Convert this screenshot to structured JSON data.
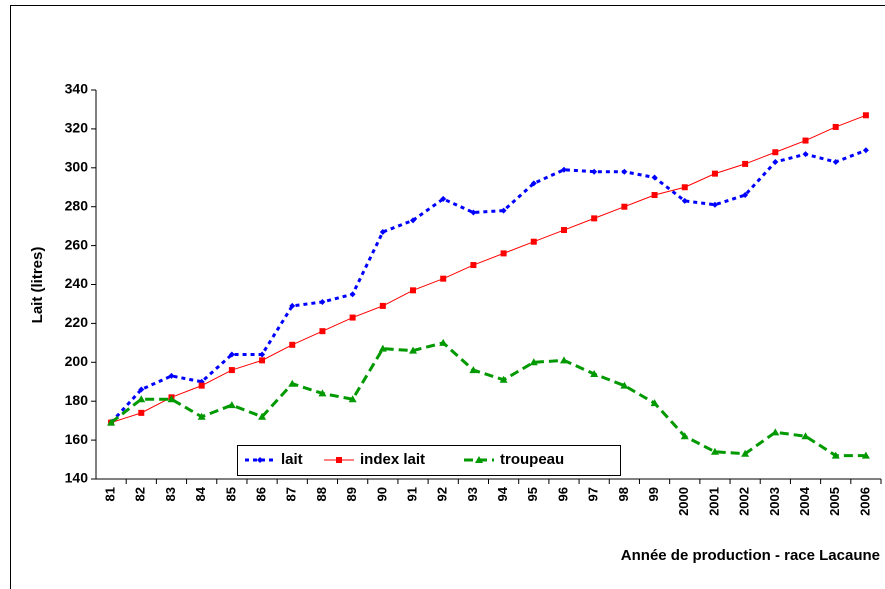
{
  "chart_data": {
    "type": "line",
    "x_label": "Année de production - race Lacaune",
    "y_label": "Lait (litres)",
    "categories": [
      "81",
      "82",
      "83",
      "84",
      "85",
      "86",
      "87",
      "88",
      "89",
      "90",
      "91",
      "92",
      "93",
      "94",
      "95",
      "96",
      "97",
      "98",
      "99",
      "2000",
      "2001",
      "2002",
      "2003",
      "2004",
      "2005",
      "2006"
    ],
    "series": [
      {
        "name": "lait",
        "color": "#0000ff",
        "values": [
          169,
          186,
          193,
          190,
          204,
          204,
          229,
          231,
          235,
          267,
          273,
          284,
          277,
          278,
          292,
          299,
          298,
          298,
          295,
          283,
          281,
          286,
          303,
          307,
          303,
          309
        ]
      },
      {
        "name": "index lait",
        "color": "#ff0000",
        "values": [
          169,
          174,
          182,
          188,
          196,
          201,
          209,
          216,
          223,
          229,
          237,
          243,
          250,
          256,
          262,
          268,
          274,
          280,
          286,
          290,
          297,
          302,
          308,
          314,
          321,
          327
        ]
      },
      {
        "name": "troupeau",
        "color": "#009900",
        "values": [
          169,
          181,
          181,
          172,
          178,
          172,
          189,
          184,
          181,
          207,
          206,
          210,
          196,
          191,
          200,
          201,
          194,
          188,
          179,
          162,
          154,
          153,
          164,
          162,
          152,
          152
        ]
      }
    ],
    "ylim": [
      140,
      340
    ],
    "yticks": [
      140,
      160,
      180,
      200,
      220,
      240,
      260,
      280,
      300,
      320,
      340
    ]
  }
}
